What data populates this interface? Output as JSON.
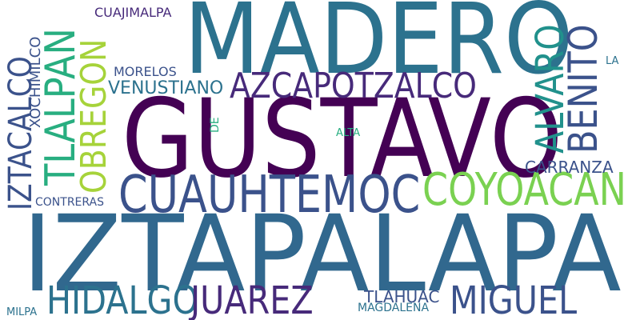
{
  "word_cloud": {
    "background_color": "#ffffff",
    "words": {
      "madero": "MADERO",
      "gustavo": "GUSTAVO",
      "iztapalapa": "IZTAPALAPA",
      "azcapotzalco": "AZCAPOTZALCO",
      "cuauhtemoc": "CUAUHTEMOC",
      "coyoacan": "COYOACAN",
      "venustiano": "VENUSTIANO",
      "morelos": "MORELOS",
      "cuajimalpa": "CUAJIMALPA",
      "carranza": "CARRANZA",
      "contreras": "CONTRERAS",
      "alta": "ALTA",
      "la": "LA",
      "hidalgo": "HIDALGO",
      "juarez": "JUAREZ",
      "miguel": "MIGUEL",
      "tlahuac": "TLAHUAC",
      "magdalena": "MAGDALENA",
      "milpa": "MILPA",
      "iztacalco": "IZTACALCO",
      "tlalpan": "TLALPAN",
      "obregon": "OBREGON",
      "xochimilco": "XOCHIMILCO",
      "alvaro": "ALVARO",
      "benito": "BENITO",
      "de": "DE"
    },
    "colors": {
      "purple": "#440154",
      "indigo": "#472a7a",
      "blue": "#3b528b",
      "slate": "#31688e",
      "teal": "#2c728e",
      "teal2": "#21918c",
      "green": "#28ae80",
      "lime": "#7ad151",
      "yellow": "#a6d33a"
    }
  }
}
